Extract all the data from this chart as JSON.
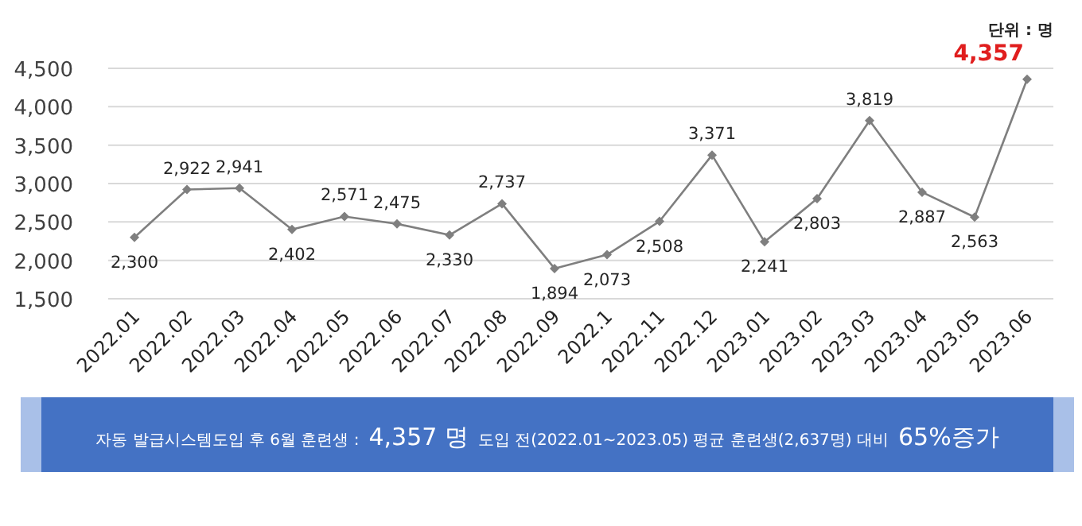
{
  "chart_data": {
    "type": "line",
    "categories": [
      "2022.01",
      "2022.02",
      "2022.03",
      "2022.04",
      "2022.05",
      "2022.06",
      "2022.07",
      "2022.08",
      "2022.09",
      "2022.1",
      "2022.11",
      "2022.12",
      "2023.01",
      "2023.02",
      "2023.03",
      "2023.04",
      "2023.05",
      "2023.06"
    ],
    "series": [
      {
        "color": "#7f7f7f",
        "values": [
          2300,
          2922,
          2941,
          2402,
          2571,
          2475,
          2330,
          2737,
          1894,
          2073,
          2508,
          3371,
          2241,
          2803,
          3819,
          2887,
          2563,
          4357
        ]
      }
    ],
    "ylim": [
      1500,
      4500
    ],
    "yticks": [
      {
        "value": 1500,
        "label": "1,500"
      },
      {
        "value": 2000,
        "label": "2,000"
      },
      {
        "value": 2500,
        "label": "2,500"
      },
      {
        "value": 3000,
        "label": "3,000"
      },
      {
        "value": 3500,
        "label": "3,500"
      },
      {
        "value": 4000,
        "label": "4,000"
      },
      {
        "value": 4500,
        "label": "4,500"
      }
    ],
    "grid": "y",
    "marker": "diamond",
    "value_labels": [
      "2,300",
      "2,922",
      "2,941",
      "2,402",
      "2,571",
      "2,475",
      "2,330",
      "2,737",
      "1,894",
      "2,073",
      "2,508",
      "3,371",
      "2,241",
      "2,803",
      "3,819",
      "2,887",
      "2,563",
      "4,357"
    ],
    "annotations": [
      "단위 : 명",
      "자동 발급시스템도입 후 6월 훈련생 :",
      "4,357 명",
      "도입 전(2022.01~2023.05) 평균 훈련생(2,637명) 대비",
      "65%증가"
    ]
  }
}
